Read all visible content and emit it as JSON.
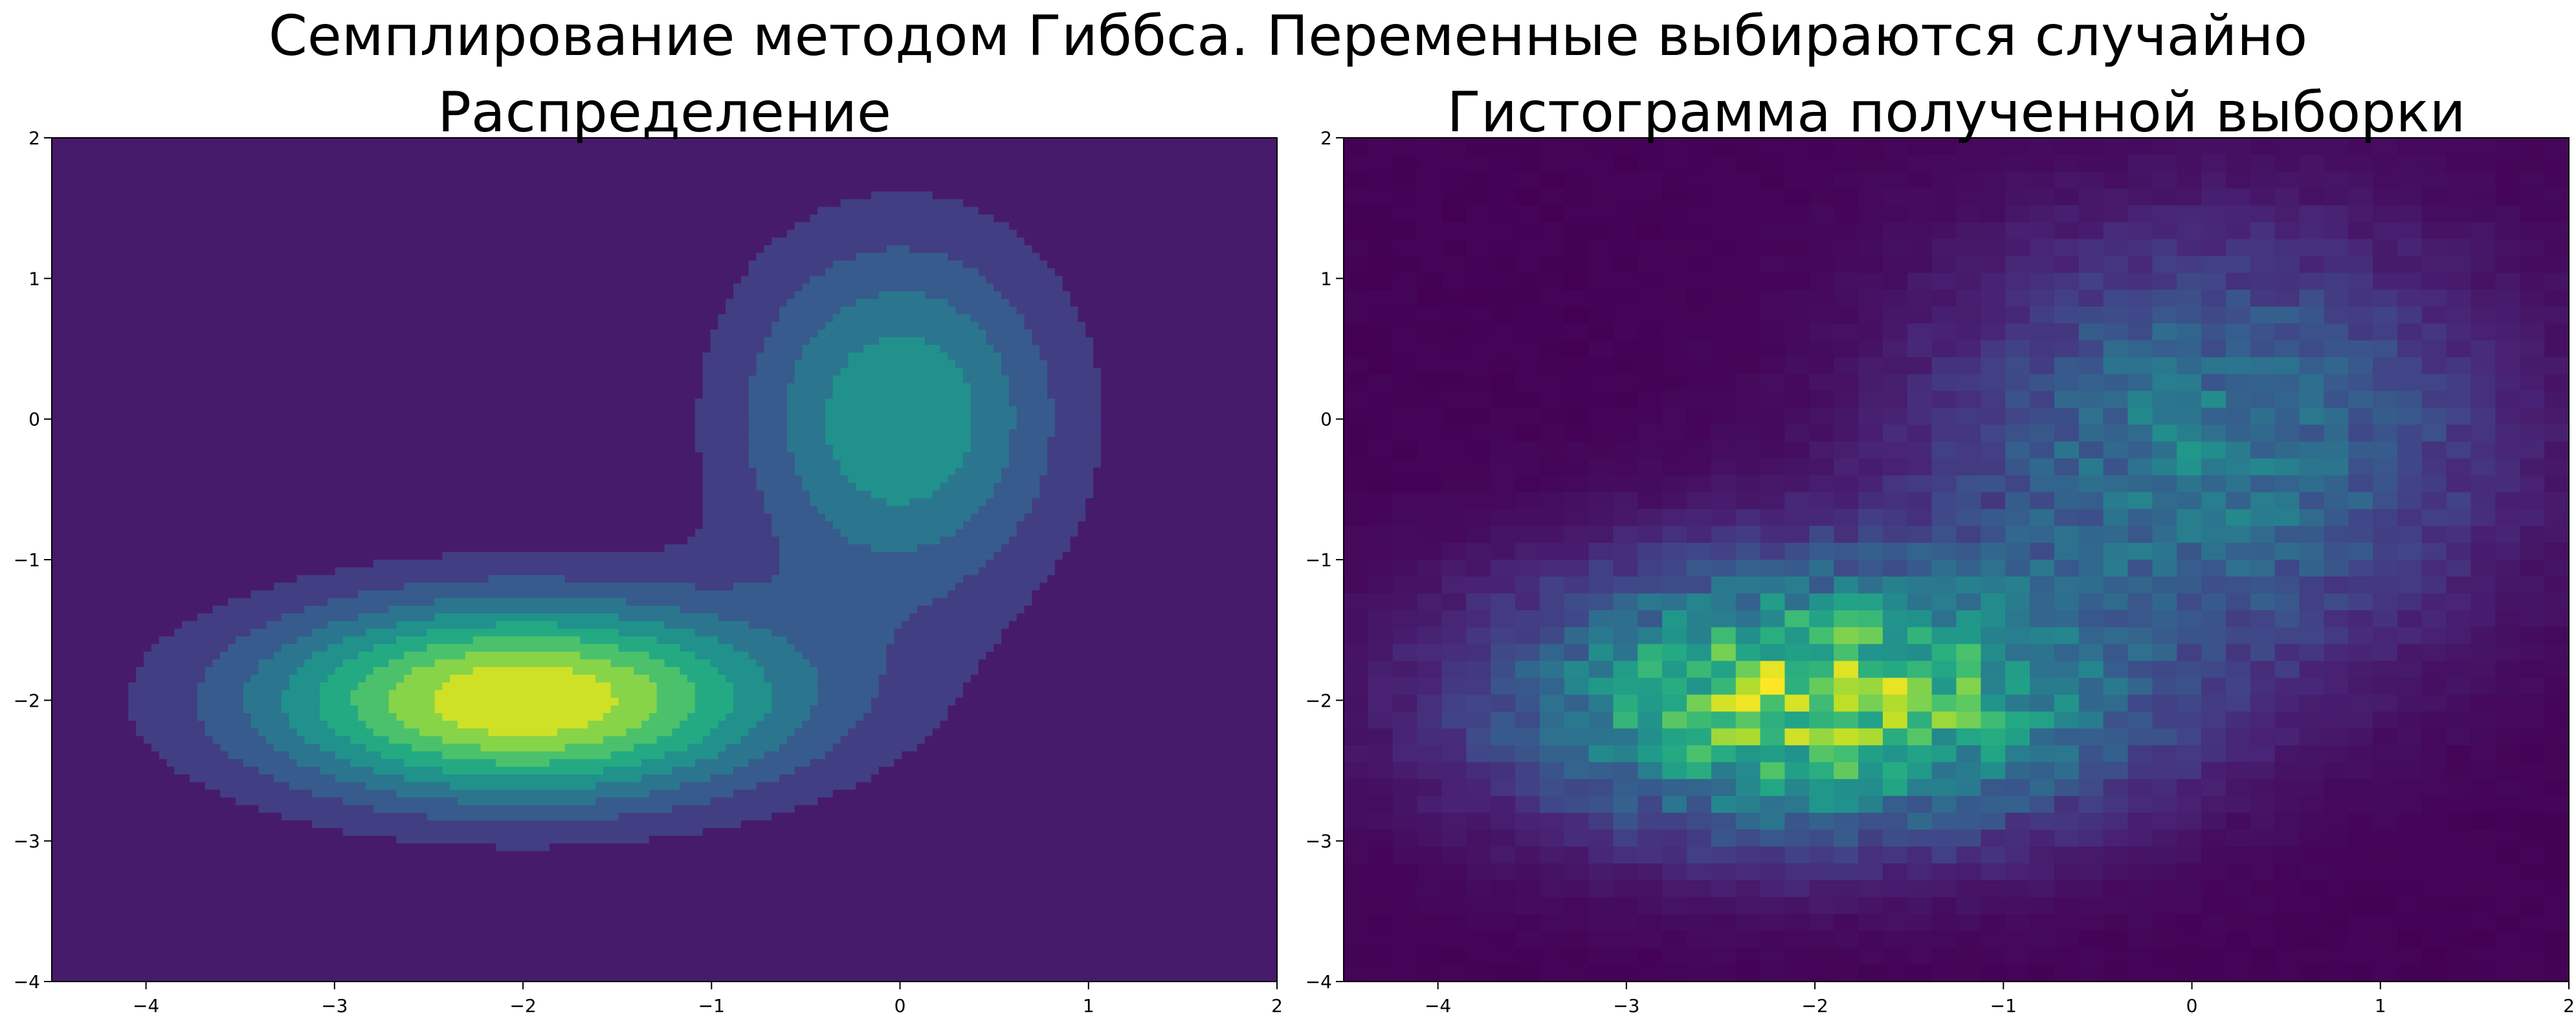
{
  "figure": {
    "suptitle": "Семплирование методом Гиббса. Переменные выбираются случайно"
  },
  "colors": {
    "viridis_stops": [
      "#440154",
      "#482475",
      "#414487",
      "#355f8d",
      "#2a788e",
      "#21918c",
      "#22a884",
      "#44bf70",
      "#7ad151",
      "#bddf26",
      "#fde725"
    ]
  },
  "chart_data": [
    {
      "type": "contourf",
      "title": "Распределение",
      "xlabel": "",
      "ylabel": "",
      "xlim": [
        -4.5,
        2
      ],
      "ylim": [
        -4,
        2
      ],
      "xticks": [
        -4,
        -3,
        -2,
        -1,
        0,
        1,
        2
      ],
      "yticks": [
        -4,
        -3,
        -2,
        -1,
        0,
        1,
        2
      ],
      "xtick_labels": [
        "−4",
        "−3",
        "−2",
        "−1",
        "0",
        "1",
        "2"
      ],
      "ytick_labels": [
        "−4",
        "−3",
        "−2",
        "−1",
        "0",
        "1",
        "2"
      ],
      "grid": false,
      "components": [
        {
          "mean": [
            -2.0,
            -2.0
          ],
          "std": [
            1.0,
            0.5
          ],
          "weight": 1.0
        },
        {
          "mean": [
            0.0,
            0.0
          ],
          "std": [
            0.6,
            0.9
          ],
          "weight": 0.55
        }
      ],
      "levels": 9,
      "colormap": "viridis"
    },
    {
      "type": "heatmap",
      "title": "Гистограмма полученной выборки",
      "xlabel": "",
      "ylabel": "",
      "xlim": [
        -4.5,
        2
      ],
      "ylim": [
        -4,
        2
      ],
      "xticks": [
        -4,
        -3,
        -2,
        -1,
        0,
        1,
        2
      ],
      "yticks": [
        -4,
        -3,
        -2,
        -1,
        0,
        1,
        2
      ],
      "xtick_labels": [
        "−4",
        "−3",
        "−2",
        "−1",
        "0",
        "1",
        "2"
      ],
      "ytick_labels": [
        "−4",
        "−3",
        "−2",
        "−1",
        "0",
        "1",
        "2"
      ],
      "grid": false,
      "bins": [
        50,
        50
      ],
      "components": [
        {
          "mean": [
            -2.0,
            -2.0
          ],
          "std": [
            1.05,
            0.62
          ],
          "weight": 1.0
        },
        {
          "mean": [
            0.1,
            -0.2
          ],
          "std": [
            0.95,
            0.95
          ],
          "weight": 0.5
        }
      ],
      "colormap": "viridis"
    }
  ]
}
